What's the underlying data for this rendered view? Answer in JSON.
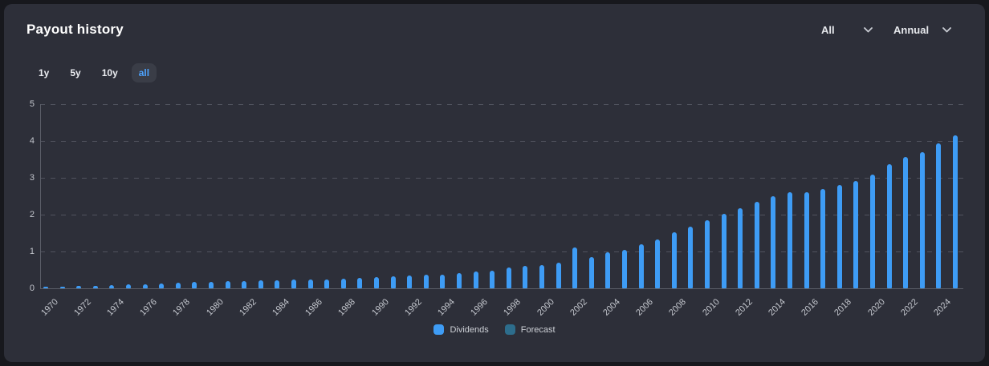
{
  "header": {
    "title": "Payout history"
  },
  "controls": {
    "ranges": [
      {
        "label": "1y",
        "active": false
      },
      {
        "label": "5y",
        "active": false
      },
      {
        "label": "10y",
        "active": false
      },
      {
        "label": "all",
        "active": true
      }
    ],
    "dropdowns": [
      {
        "name": "type-filter",
        "value": "All"
      },
      {
        "name": "frequency-filter",
        "value": "Annual"
      }
    ]
  },
  "legend": [
    {
      "label": "Dividends",
      "color": "#3e9cf5"
    },
    {
      "label": "Forecast",
      "color": "#2d6d8c"
    }
  ],
  "colors": {
    "page_background": "#17181d",
    "card_background": "#2d2f39",
    "bar_blue": "#3e9cf5",
    "forecast_teal": "#2d6d8c",
    "active_range_text": "#4da3ff",
    "gridline": "#50535e",
    "axis_line": "#5a5d67",
    "tick_label": "#c3c6cd"
  },
  "chart_data": {
    "type": "bar",
    "title": "Payout history",
    "x": [
      1970,
      1971,
      1972,
      1973,
      1974,
      1975,
      1976,
      1977,
      1978,
      1979,
      1980,
      1981,
      1982,
      1983,
      1984,
      1985,
      1986,
      1987,
      1988,
      1989,
      1990,
      1991,
      1992,
      1993,
      1994,
      1995,
      1996,
      1997,
      1998,
      1999,
      2000,
      2001,
      2002,
      2003,
      2004,
      2005,
      2006,
      2007,
      2008,
      2009,
      2010,
      2011,
      2012,
      2013,
      2014,
      2015,
      2016,
      2017,
      2018,
      2019,
      2020,
      2021,
      2022,
      2023,
      2024,
      2025
    ],
    "series": [
      {
        "name": "Dividends",
        "values": [
          0.04,
          0.05,
          0.06,
          0.07,
          0.08,
          0.1,
          0.11,
          0.13,
          0.15,
          0.17,
          0.18,
          0.19,
          0.2,
          0.21,
          0.22,
          0.23,
          0.24,
          0.25,
          0.26,
          0.28,
          0.3,
          0.32,
          0.34,
          0.36,
          0.38,
          0.41,
          0.45,
          0.49,
          0.56,
          0.6,
          0.64,
          0.7,
          1.1,
          0.85,
          0.97,
          1.05,
          1.2,
          1.33,
          1.52,
          1.68,
          1.85,
          2.02,
          2.18,
          2.35,
          2.5,
          2.6,
          2.62,
          2.7,
          2.8,
          2.92,
          3.08,
          3.37,
          3.57,
          3.7,
          3.93,
          4.15
        ]
      },
      {
        "name": "Forecast",
        "values": []
      }
    ],
    "xlabel": "",
    "ylabel": "",
    "ylim": [
      0,
      5
    ],
    "yticks": [
      0,
      1,
      2,
      3,
      4,
      5
    ],
    "xtick_step": 2,
    "grid": "horizontal-dashed",
    "legend_position": "bottom-center"
  }
}
